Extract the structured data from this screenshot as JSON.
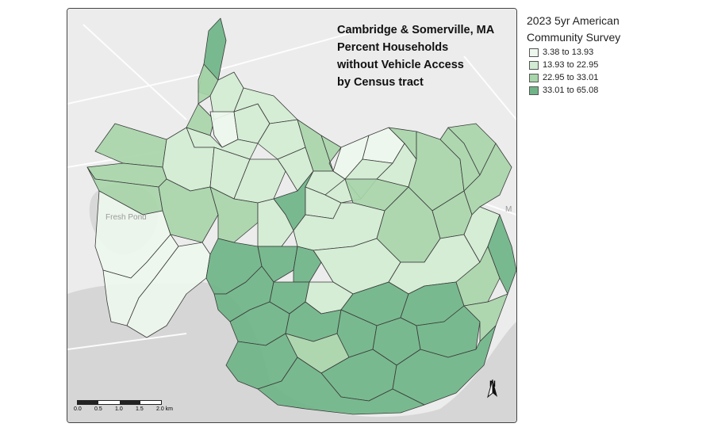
{
  "title_lines": [
    "Cambridge & Somerville, MA",
    "Percent Households",
    "without Vehicle Access",
    "by Census tract"
  ],
  "legend": {
    "title_lines": [
      "2023 5yr American",
      "Community Survey"
    ],
    "classes": [
      {
        "label": "3.38 to 13.93",
        "color": "#eef7ee"
      },
      {
        "label": "13.93 to 22.95",
        "color": "#d2ebd3"
      },
      {
        "label": "22.95 to 33.01",
        "color": "#a8d5aa"
      },
      {
        "label": "33.01 to 65.08",
        "color": "#6fb487"
      }
    ]
  },
  "basemap_labels": {
    "pond": "Fresh Pond",
    "edge": "M"
  },
  "scale_bar": {
    "labels": [
      "0.0",
      "0.5",
      "1.0",
      "1.5",
      "2.0 km"
    ]
  },
  "north_arrow": {
    "letter": "N"
  }
}
